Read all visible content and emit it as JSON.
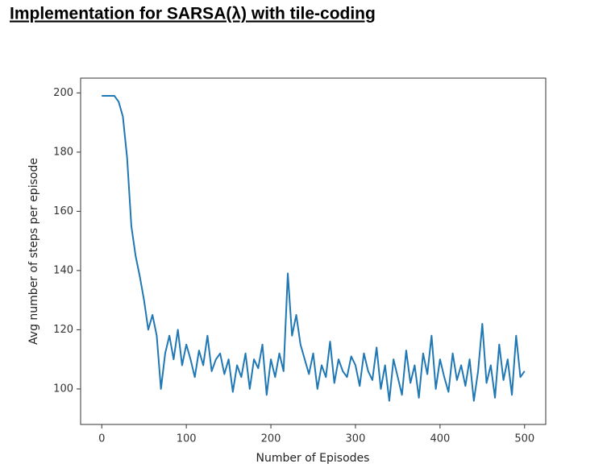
{
  "chart_data": {
    "type": "line",
    "title": "Implementation for SARSA(λ) with tile-coding",
    "xlabel": "Number of Episodes",
    "ylabel": "Avg number of steps per episode",
    "color": "#1f77b4",
    "x": [
      0,
      5,
      10,
      15,
      20,
      25,
      30,
      35,
      40,
      45,
      50,
      55,
      60,
      65,
      70,
      75,
      80,
      85,
      90,
      95,
      100,
      105,
      110,
      115,
      120,
      125,
      130,
      135,
      140,
      145,
      150,
      155,
      160,
      165,
      170,
      175,
      180,
      185,
      190,
      195,
      200,
      205,
      210,
      215,
      220,
      225,
      230,
      235,
      240,
      245,
      250,
      255,
      260,
      265,
      270,
      275,
      280,
      285,
      290,
      295,
      300,
      305,
      310,
      315,
      320,
      325,
      330,
      335,
      340,
      345,
      350,
      355,
      360,
      365,
      370,
      375,
      380,
      385,
      390,
      395,
      400,
      405,
      410,
      415,
      420,
      425,
      430,
      435,
      440,
      445,
      450,
      455,
      460,
      465,
      470,
      475,
      480,
      485,
      490,
      495,
      500
    ],
    "values": [
      199,
      199,
      199,
      199,
      197,
      192,
      178,
      155,
      145,
      138,
      130,
      120,
      125,
      118,
      100,
      112,
      118,
      110,
      120,
      108,
      115,
      110,
      104,
      113,
      108,
      118,
      106,
      110,
      112,
      105,
      110,
      99,
      108,
      104,
      112,
      100,
      110,
      107,
      115,
      98,
      110,
      104,
      112,
      106,
      139,
      118,
      125,
      115,
      110,
      105,
      112,
      100,
      108,
      104,
      116,
      102,
      110,
      106,
      104,
      111,
      108,
      101,
      112,
      106,
      103,
      114,
      100,
      108,
      96,
      110,
      104,
      98,
      113,
      102,
      108,
      97,
      112,
      105,
      118,
      100,
      110,
      104,
      99,
      112,
      103,
      108,
      101,
      110,
      96,
      106,
      122,
      102,
      108,
      97,
      115,
      103,
      110,
      98,
      118,
      104,
      106
    ],
    "xlim": [
      -25,
      525
    ],
    "ylim": [
      88,
      205
    ],
    "xticks": [
      0,
      100,
      200,
      300,
      400,
      500
    ],
    "yticks": [
      100,
      120,
      140,
      160,
      180,
      200
    ]
  }
}
